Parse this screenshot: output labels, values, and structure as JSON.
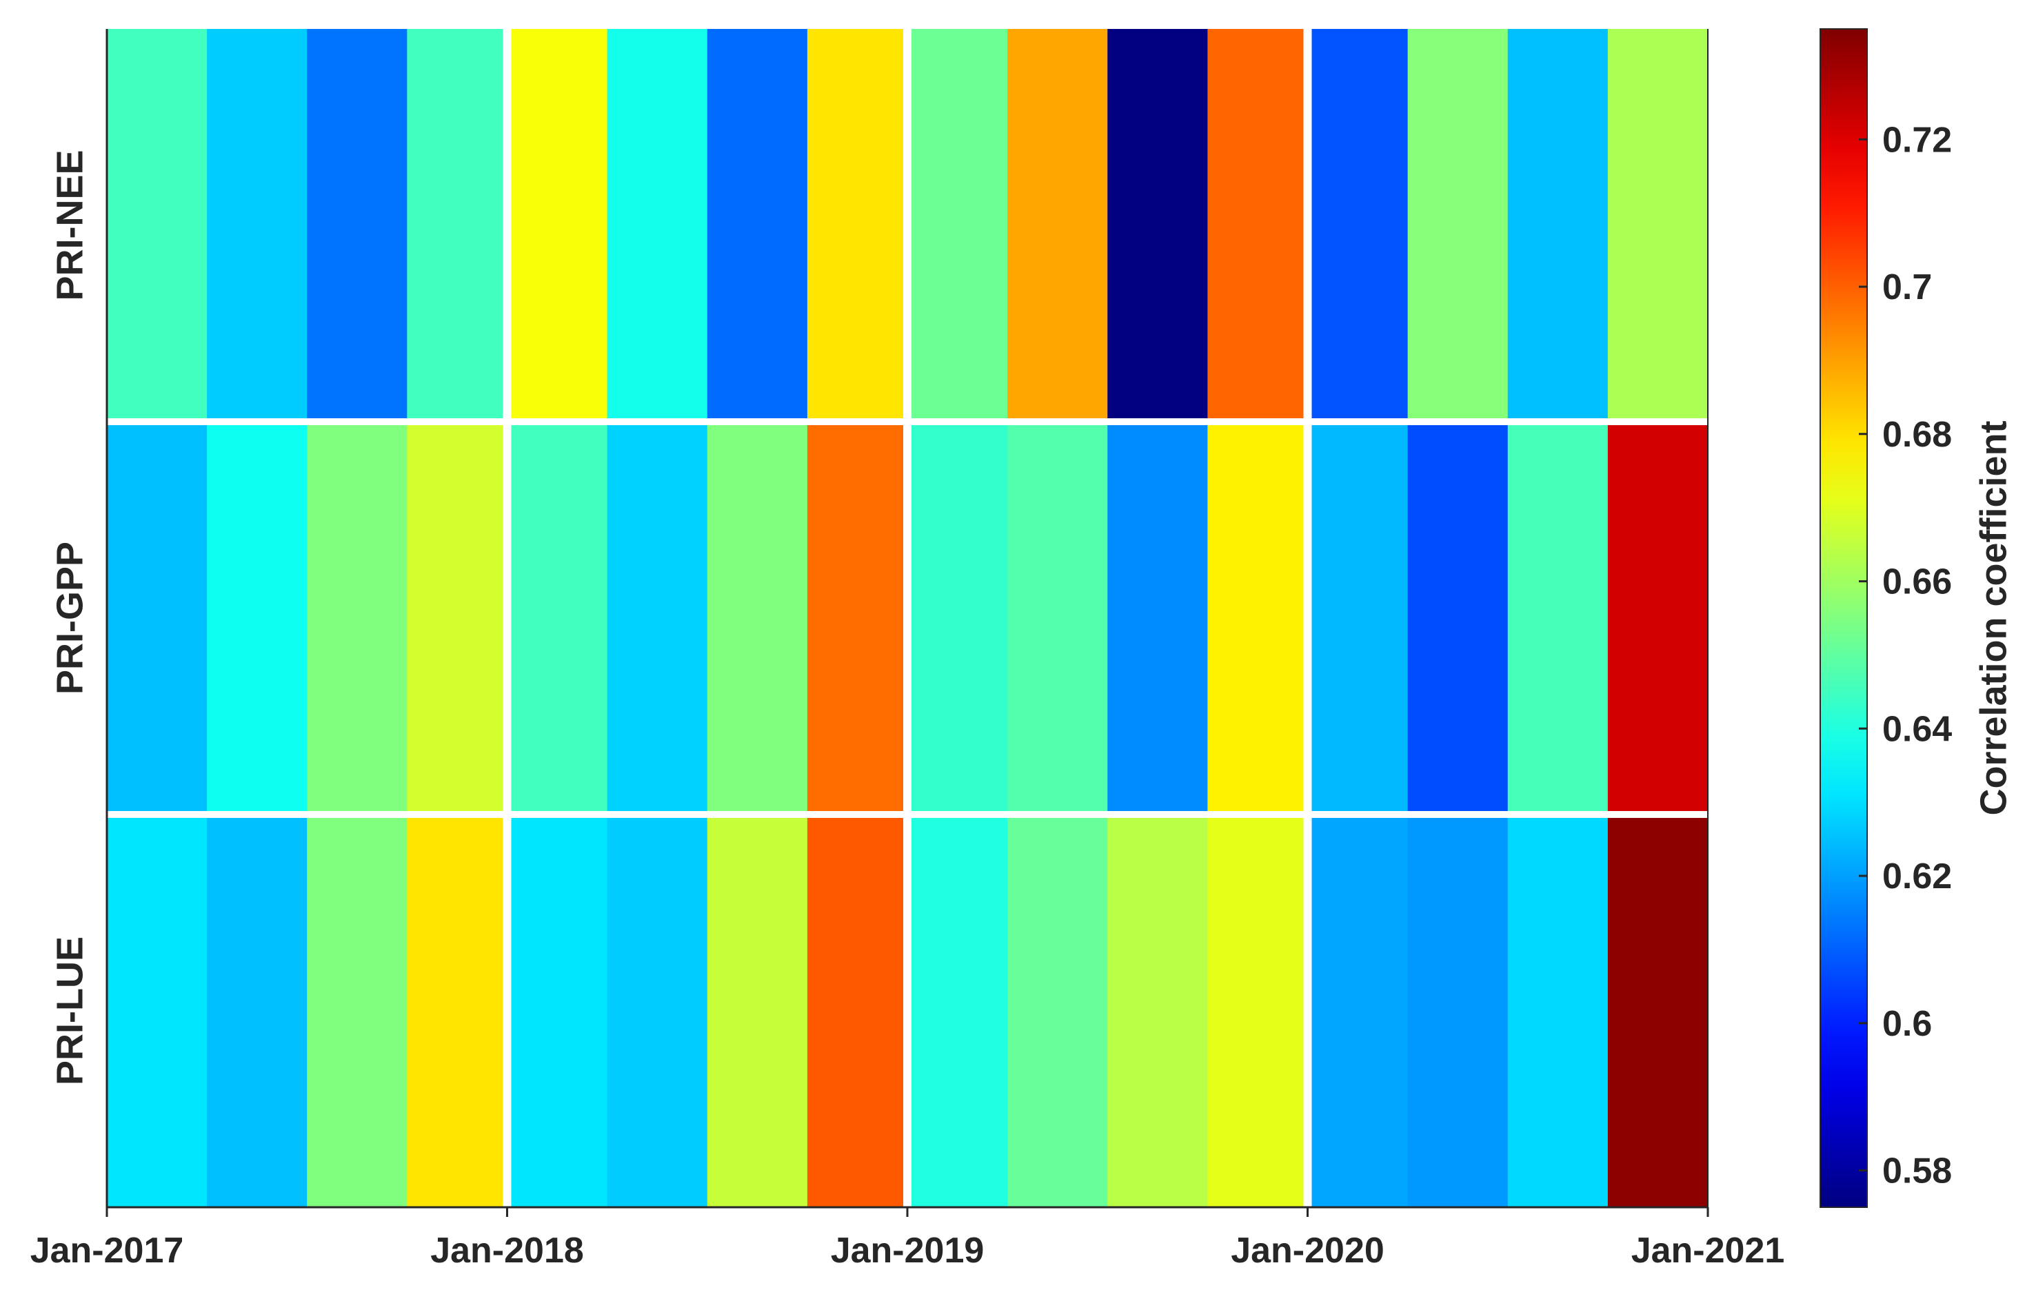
{
  "chart_data": {
    "type": "heatmap",
    "title": "",
    "xlabel": "",
    "ylabel": "",
    "rows": [
      "PRI-NEE",
      "PRI-GPP",
      "PRI-LUE"
    ],
    "x_tick_labels": [
      "Jan-2017",
      "Jan-2018",
      "Jan-2019",
      "Jan-2020",
      "Jan-2021"
    ],
    "columns_per_year": 4,
    "values": [
      [
        0.645,
        0.627,
        0.613,
        0.645,
        0.674,
        0.638,
        0.612,
        0.679,
        0.652,
        0.689,
        0.575,
        0.699,
        0.608,
        0.656,
        0.625,
        0.662
      ],
      [
        0.625,
        0.637,
        0.655,
        0.668,
        0.645,
        0.628,
        0.655,
        0.698,
        0.643,
        0.648,
        0.617,
        0.677,
        0.624,
        0.607,
        0.646,
        0.722
      ],
      [
        0.631,
        0.625,
        0.655,
        0.679,
        0.631,
        0.627,
        0.666,
        0.701,
        0.64,
        0.651,
        0.664,
        0.671,
        0.621,
        0.619,
        0.629,
        0.733
      ]
    ],
    "colorbar": {
      "label": "Correlation coefficient",
      "ticks": [
        "0.58",
        "0.6",
        "0.62",
        "0.64",
        "0.66",
        "0.68",
        "0.7",
        "0.72"
      ],
      "min": 0.575,
      "max": 0.735,
      "colormap": "jet"
    },
    "grid": false
  }
}
